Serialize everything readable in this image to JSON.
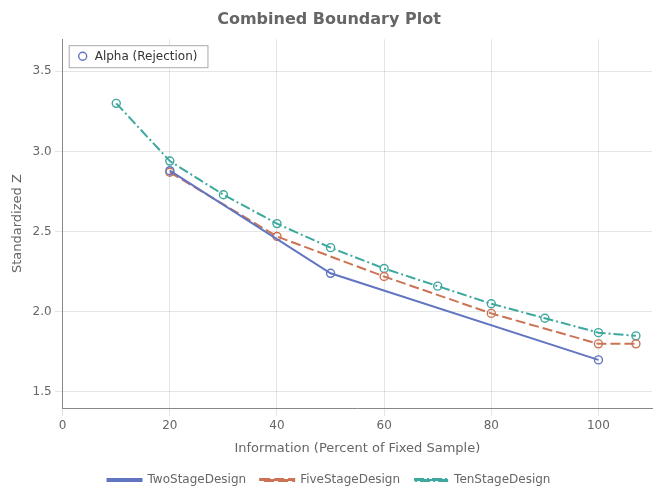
{
  "chart_data": {
    "type": "line",
    "title": "Combined Boundary Plot",
    "xlabel": "Information (Percent of Fixed Sample)",
    "ylabel": "Standardized Z",
    "xlim": [
      0,
      110
    ],
    "ylim": [
      1.4,
      3.7
    ],
    "xticks": [
      0,
      20,
      40,
      60,
      80,
      100
    ],
    "yticks": [
      1.5,
      {
        "value": 2,
        "label": "2.0"
      },
      2.5,
      {
        "value": 3,
        "label": "3.0"
      },
      3.5
    ],
    "series": [
      {
        "name": "TwoStageDesign",
        "color": "#6175c1",
        "line_style": "solid",
        "marker": "circle",
        "x": [
          20,
          50,
          100
        ],
        "values": [
          2.88,
          2.24,
          1.7
        ]
      },
      {
        "name": "FiveStageDesign",
        "color": "#cc7355",
        "line_style": "dashed",
        "marker": "circle",
        "x": [
          20,
          40,
          60,
          80,
          100,
          107
        ],
        "values": [
          2.87,
          2.47,
          2.22,
          1.99,
          1.8,
          1.8
        ]
      },
      {
        "name": "TenStageDesign",
        "color": "#3da89e",
        "line_style": "dashdot",
        "marker": "circle",
        "x": [
          10,
          20,
          30,
          40,
          50,
          60,
          70,
          80,
          90,
          100,
          107
        ],
        "values": [
          3.3,
          2.94,
          2.73,
          2.55,
          2.4,
          2.27,
          2.16,
          2.05,
          1.96,
          1.87,
          1.85
        ]
      }
    ],
    "annotation": "Alpha (Rejection)",
    "legend": "bottom",
    "grid": true
  }
}
